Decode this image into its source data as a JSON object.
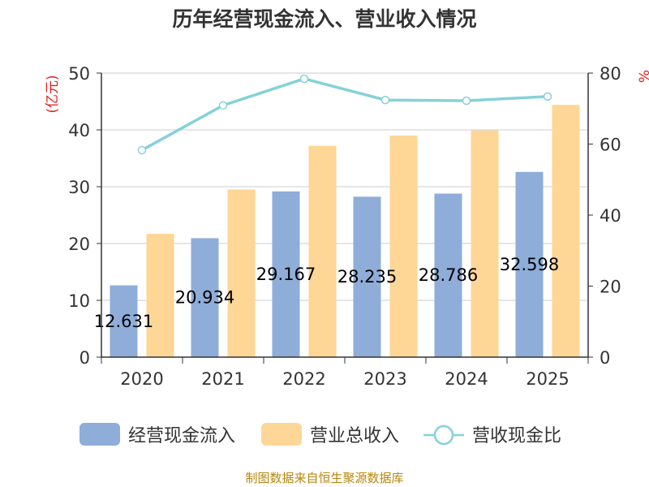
{
  "title": "历年经营现金流入、营业收入情况",
  "source": "制图数据来自恒生聚源数据库",
  "colors": {
    "cash_inflow": "#8eadd9",
    "revenue": "#fed695",
    "ratio": "#86d1d8",
    "axis": "#333333",
    "grid": "#cccccc",
    "unit": "#e02020",
    "source": "#b8860b"
  },
  "chart_data": {
    "type": "bar+line",
    "title": "历年经营现金流入、营业收入情况",
    "categories": [
      "2020",
      "2021",
      "2022",
      "2023",
      "2024",
      "2025"
    ],
    "left_axis": {
      "unit": "(亿元)",
      "ylim": [
        0,
        50
      ],
      "ticks": [
        0,
        10,
        20,
        30,
        40,
        50
      ]
    },
    "right_axis": {
      "unit": "%",
      "ylim": [
        0,
        80
      ],
      "ticks": [
        0,
        20,
        40,
        60,
        80
      ]
    },
    "series": [
      {
        "name": "经营现金流入",
        "type": "bar",
        "axis": "left",
        "values": [
          12.631,
          20.934,
          29.167,
          28.235,
          28.786,
          32.598
        ],
        "labels": [
          "12.631",
          "20.934",
          "29.167",
          "28.235",
          "28.786",
          "32.598"
        ]
      },
      {
        "name": "营业总收入",
        "type": "bar",
        "axis": "left",
        "values": [
          21.7,
          29.5,
          37.2,
          39.0,
          39.9,
          44.4
        ]
      },
      {
        "name": "营收现金比",
        "type": "line",
        "axis": "right",
        "values": [
          58.3,
          70.9,
          78.4,
          72.4,
          72.2,
          73.4
        ]
      }
    ],
    "grid": true,
    "legend": "bottom"
  }
}
